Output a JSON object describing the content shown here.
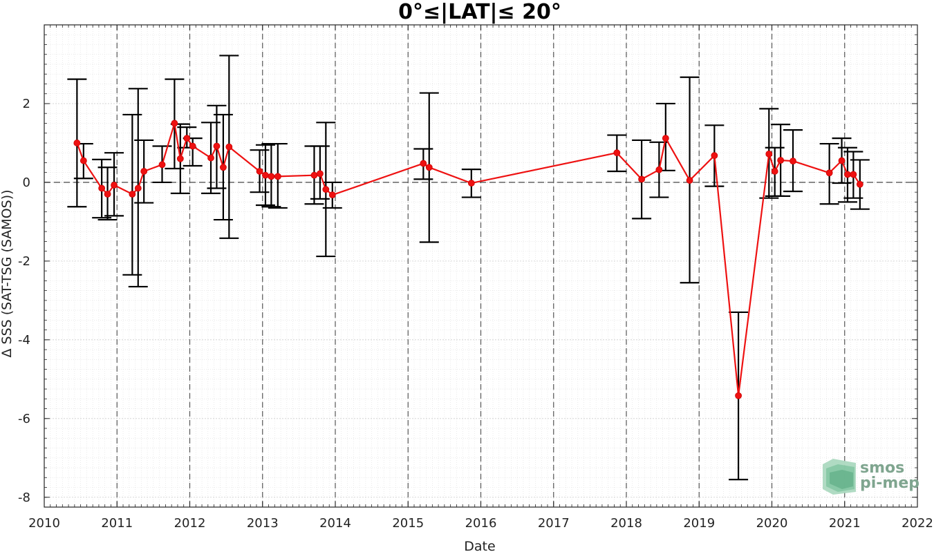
{
  "chart_data": {
    "type": "line",
    "title": "0°≤|LAT|≤ 20°",
    "xlabel": "Date",
    "ylabel": "Δ SSS (SAT-TSG (SAMOS))",
    "xlim": [
      2010.0,
      2022.0
    ],
    "ylim": [
      -8.25,
      4.0
    ],
    "x_ticks": [
      2010,
      2011,
      2012,
      2013,
      2014,
      2015,
      2016,
      2017,
      2018,
      2019,
      2020,
      2021,
      2022
    ],
    "x_tick_labels": [
      "2010",
      "2011",
      "2012",
      "2013",
      "2014",
      "2015",
      "2016",
      "2017",
      "2018",
      "2019",
      "2020",
      "2021",
      "2022"
    ],
    "y_ticks": [
      -8,
      -6,
      -4,
      -2,
      0,
      2
    ],
    "y_tick_labels": [
      "-8",
      "-6",
      "-4",
      "-2",
      "0",
      "2"
    ],
    "grid": true,
    "reference_line_y": 0,
    "year_divider_lines": [
      2011,
      2012,
      2013,
      2014,
      2015,
      2016,
      2017,
      2018,
      2019,
      2020,
      2021
    ],
    "colors": {
      "line": "#ee1111",
      "marker": "#ee1111",
      "errorbar": "#000000",
      "reference": "#555555",
      "grid": "#dddddd"
    },
    "series": [
      {
        "x": [
          2010.45,
          2010.54,
          2010.79,
          2010.87,
          2010.96,
          2011.21,
          2011.29,
          2011.37,
          2011.62,
          2011.79,
          2011.87,
          2011.96,
          2012.04,
          2012.29,
          2012.37,
          2012.46,
          2012.54,
          2012.96,
          2013.04,
          2013.12,
          2013.21,
          2013.71,
          2013.79,
          2013.87,
          2013.96,
          2015.21,
          2015.29,
          2015.87,
          2017.87,
          2018.21,
          2018.45,
          2018.54,
          2018.87,
          2019.21,
          2019.54,
          2019.96,
          2020.04,
          2020.12,
          2020.29,
          2020.79,
          2020.96,
          2021.04,
          2021.12,
          2021.21
        ],
        "y": [
          1.0,
          0.55,
          -0.15,
          -0.3,
          -0.07,
          -0.3,
          -0.15,
          0.28,
          0.45,
          1.5,
          0.6,
          1.12,
          0.92,
          0.62,
          0.92,
          0.38,
          0.9,
          0.28,
          0.18,
          0.15,
          0.15,
          0.18,
          0.22,
          -0.18,
          -0.32,
          0.48,
          0.38,
          -0.02,
          0.75,
          0.08,
          0.32,
          1.12,
          0.05,
          0.68,
          -5.42,
          0.72,
          0.28,
          0.56,
          0.54,
          0.24,
          0.55,
          0.2,
          0.2,
          -0.05
        ],
        "err_low": [
          -0.62,
          0.1,
          -0.9,
          -0.95,
          -0.85,
          -2.35,
          -2.65,
          -0.52,
          0.0,
          0.35,
          -0.28,
          0.88,
          0.42,
          -0.28,
          -0.15,
          -0.95,
          -1.42,
          -0.25,
          -0.58,
          -0.62,
          -0.65,
          -0.55,
          -0.42,
          -1.88,
          -0.65,
          0.08,
          -1.52,
          -0.38,
          0.28,
          -0.92,
          -0.38,
          0.3,
          -2.55,
          -0.1,
          -7.55,
          -0.4,
          -0.35,
          -0.35,
          -0.23,
          -0.55,
          -0.02,
          -0.5,
          -0.4,
          -0.68
        ],
        "err_high": [
          2.62,
          0.98,
          0.58,
          0.38,
          0.75,
          1.72,
          2.38,
          1.07,
          0.92,
          2.62,
          1.48,
          1.4,
          1.12,
          1.52,
          1.95,
          1.72,
          3.22,
          0.82,
          0.95,
          0.98,
          0.98,
          0.92,
          0.92,
          1.52,
          0.0,
          0.85,
          2.27,
          0.33,
          1.2,
          1.07,
          1.02,
          2.0,
          2.67,
          1.45,
          -3.3,
          1.87,
          0.88,
          1.47,
          1.33,
          0.98,
          1.12,
          0.88,
          0.78,
          0.57
        ]
      }
    ]
  },
  "logo": {
    "line1": "smos",
    "line2": "pi-mep"
  }
}
